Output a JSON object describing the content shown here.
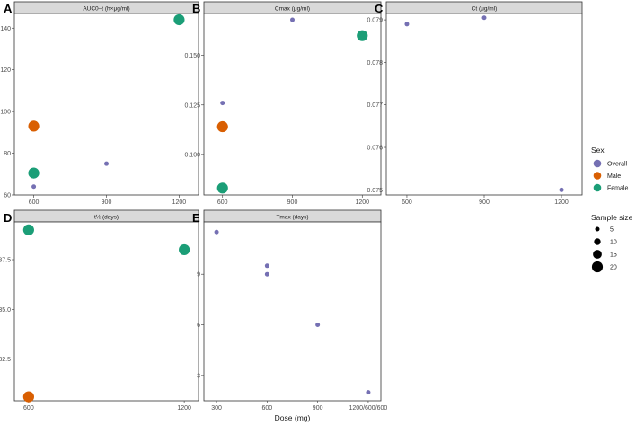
{
  "chart_data": [
    {
      "letter": "A",
      "type": "scatter",
      "title": "AUC0–t (h×μg/ml)",
      "xlim": [
        520,
        1280
      ],
      "ylim": [
        60,
        147
      ],
      "xticks": [
        600,
        900,
        1200
      ],
      "xtick_labels": [
        "600",
        "900",
        "1200"
      ],
      "yticks": [
        60,
        80,
        100,
        120,
        140
      ],
      "points": [
        {
          "x": 600,
          "y": 64,
          "group": "Overall",
          "size": 5
        },
        {
          "x": 900,
          "y": 75,
          "group": "Overall",
          "size": 5
        },
        {
          "x": 600,
          "y": 93,
          "group": "Male",
          "size": 20
        },
        {
          "x": 600,
          "y": 70.5,
          "group": "Female",
          "size": 20
        },
        {
          "x": 1200,
          "y": 144,
          "group": "Female",
          "size": 20
        }
      ]
    },
    {
      "letter": "B",
      "type": "scatter",
      "title": "Cmax (μg/ml)",
      "xlim": [
        520,
        1280
      ],
      "ylim": [
        0.0795,
        0.1712
      ],
      "xticks": [
        600,
        900,
        1200
      ],
      "xtick_labels": [
        "600",
        "900",
        "1200"
      ],
      "yticks": [
        0.1,
        0.125,
        0.15
      ],
      "ytick_labels": [
        "0.100",
        "0.125",
        "0.150"
      ],
      "points": [
        {
          "x": 900,
          "y": 0.168,
          "group": "Overall",
          "size": 5
        },
        {
          "x": 600,
          "y": 0.126,
          "group": "Overall",
          "size": 5
        },
        {
          "x": 1200,
          "y": 0.16,
          "group": "Female",
          "size": 20
        },
        {
          "x": 600,
          "y": 0.114,
          "group": "Male",
          "size": 20
        },
        {
          "x": 600,
          "y": 0.083,
          "group": "Female",
          "size": 20
        }
      ]
    },
    {
      "letter": "C",
      "type": "scatter",
      "title": "Ct (μg/ml)",
      "xlim": [
        520,
        1280
      ],
      "ylim": [
        0.07488,
        0.07915
      ],
      "xticks": [
        600,
        900,
        1200
      ],
      "xtick_labels": [
        "600",
        "900",
        "1200"
      ],
      "yticks": [
        0.075,
        0.076,
        0.077,
        0.078,
        0.079
      ],
      "ytick_labels": [
        "0.075",
        "0.076",
        "0.077",
        "0.078",
        "0.079"
      ],
      "points": [
        {
          "x": 600,
          "y": 0.0789,
          "group": "Overall",
          "size": 5
        },
        {
          "x": 900,
          "y": 0.07905,
          "group": "Overall",
          "size": 5
        },
        {
          "x": 1200,
          "y": 0.075,
          "group": "Overall",
          "size": 5
        }
      ]
    },
    {
      "letter": "D",
      "type": "scatter",
      "title": "t½ (days)",
      "xlim": [
        545,
        1255
      ],
      "ylim": [
        30.4,
        39.4
      ],
      "xticks": [
        600,
        1200
      ],
      "xtick_labels": [
        "600",
        "1200"
      ],
      "yticks": [
        32.5,
        35.0,
        37.5
      ],
      "ytick_labels": [
        "32.5",
        "35.0",
        "37.5"
      ],
      "points": [
        {
          "x": 600,
          "y": 39.0,
          "group": "Female",
          "size": 20
        },
        {
          "x": 1200,
          "y": 38.0,
          "group": "Female",
          "size": 20
        },
        {
          "x": 600,
          "y": 30.6,
          "group": "Male",
          "size": 20
        }
      ]
    },
    {
      "letter": "E",
      "type": "scatter",
      "title": "Tmax (days)",
      "xlim": [
        0.75,
        4.25
      ],
      "ylim": [
        1.5,
        12.1
      ],
      "xticks": [
        1,
        2,
        3,
        4
      ],
      "xtick_labels": [
        "300",
        "600",
        "900",
        "1200/600/600"
      ],
      "yticks": [
        3,
        6,
        9
      ],
      "ytick_labels": [
        "3",
        "6",
        "9"
      ],
      "points": [
        {
          "x": 1,
          "y": 11.5,
          "group": "Overall",
          "size": 5
        },
        {
          "x": 2,
          "y": 9.5,
          "group": "Overall",
          "size": 5
        },
        {
          "x": 2,
          "y": 9.0,
          "group": "Overall",
          "size": 5
        },
        {
          "x": 3,
          "y": 6.0,
          "group": "Overall",
          "size": 5
        },
        {
          "x": 4,
          "y": 2.0,
          "group": "Overall",
          "size": 5
        }
      ],
      "xlabel": "Dose (mg)"
    }
  ],
  "legend": {
    "sex_title": "Sex",
    "groups": [
      {
        "label": "Overall",
        "color": "#7570b3"
      },
      {
        "label": "Male",
        "color": "#d95f02"
      },
      {
        "label": "Female",
        "color": "#1b9e77"
      }
    ],
    "size_title": "Sample size",
    "sizes": [
      {
        "label": "5",
        "value": 5
      },
      {
        "label": "10",
        "value": 10
      },
      {
        "label": "15",
        "value": 15
      },
      {
        "label": "20",
        "value": 20
      }
    ]
  }
}
